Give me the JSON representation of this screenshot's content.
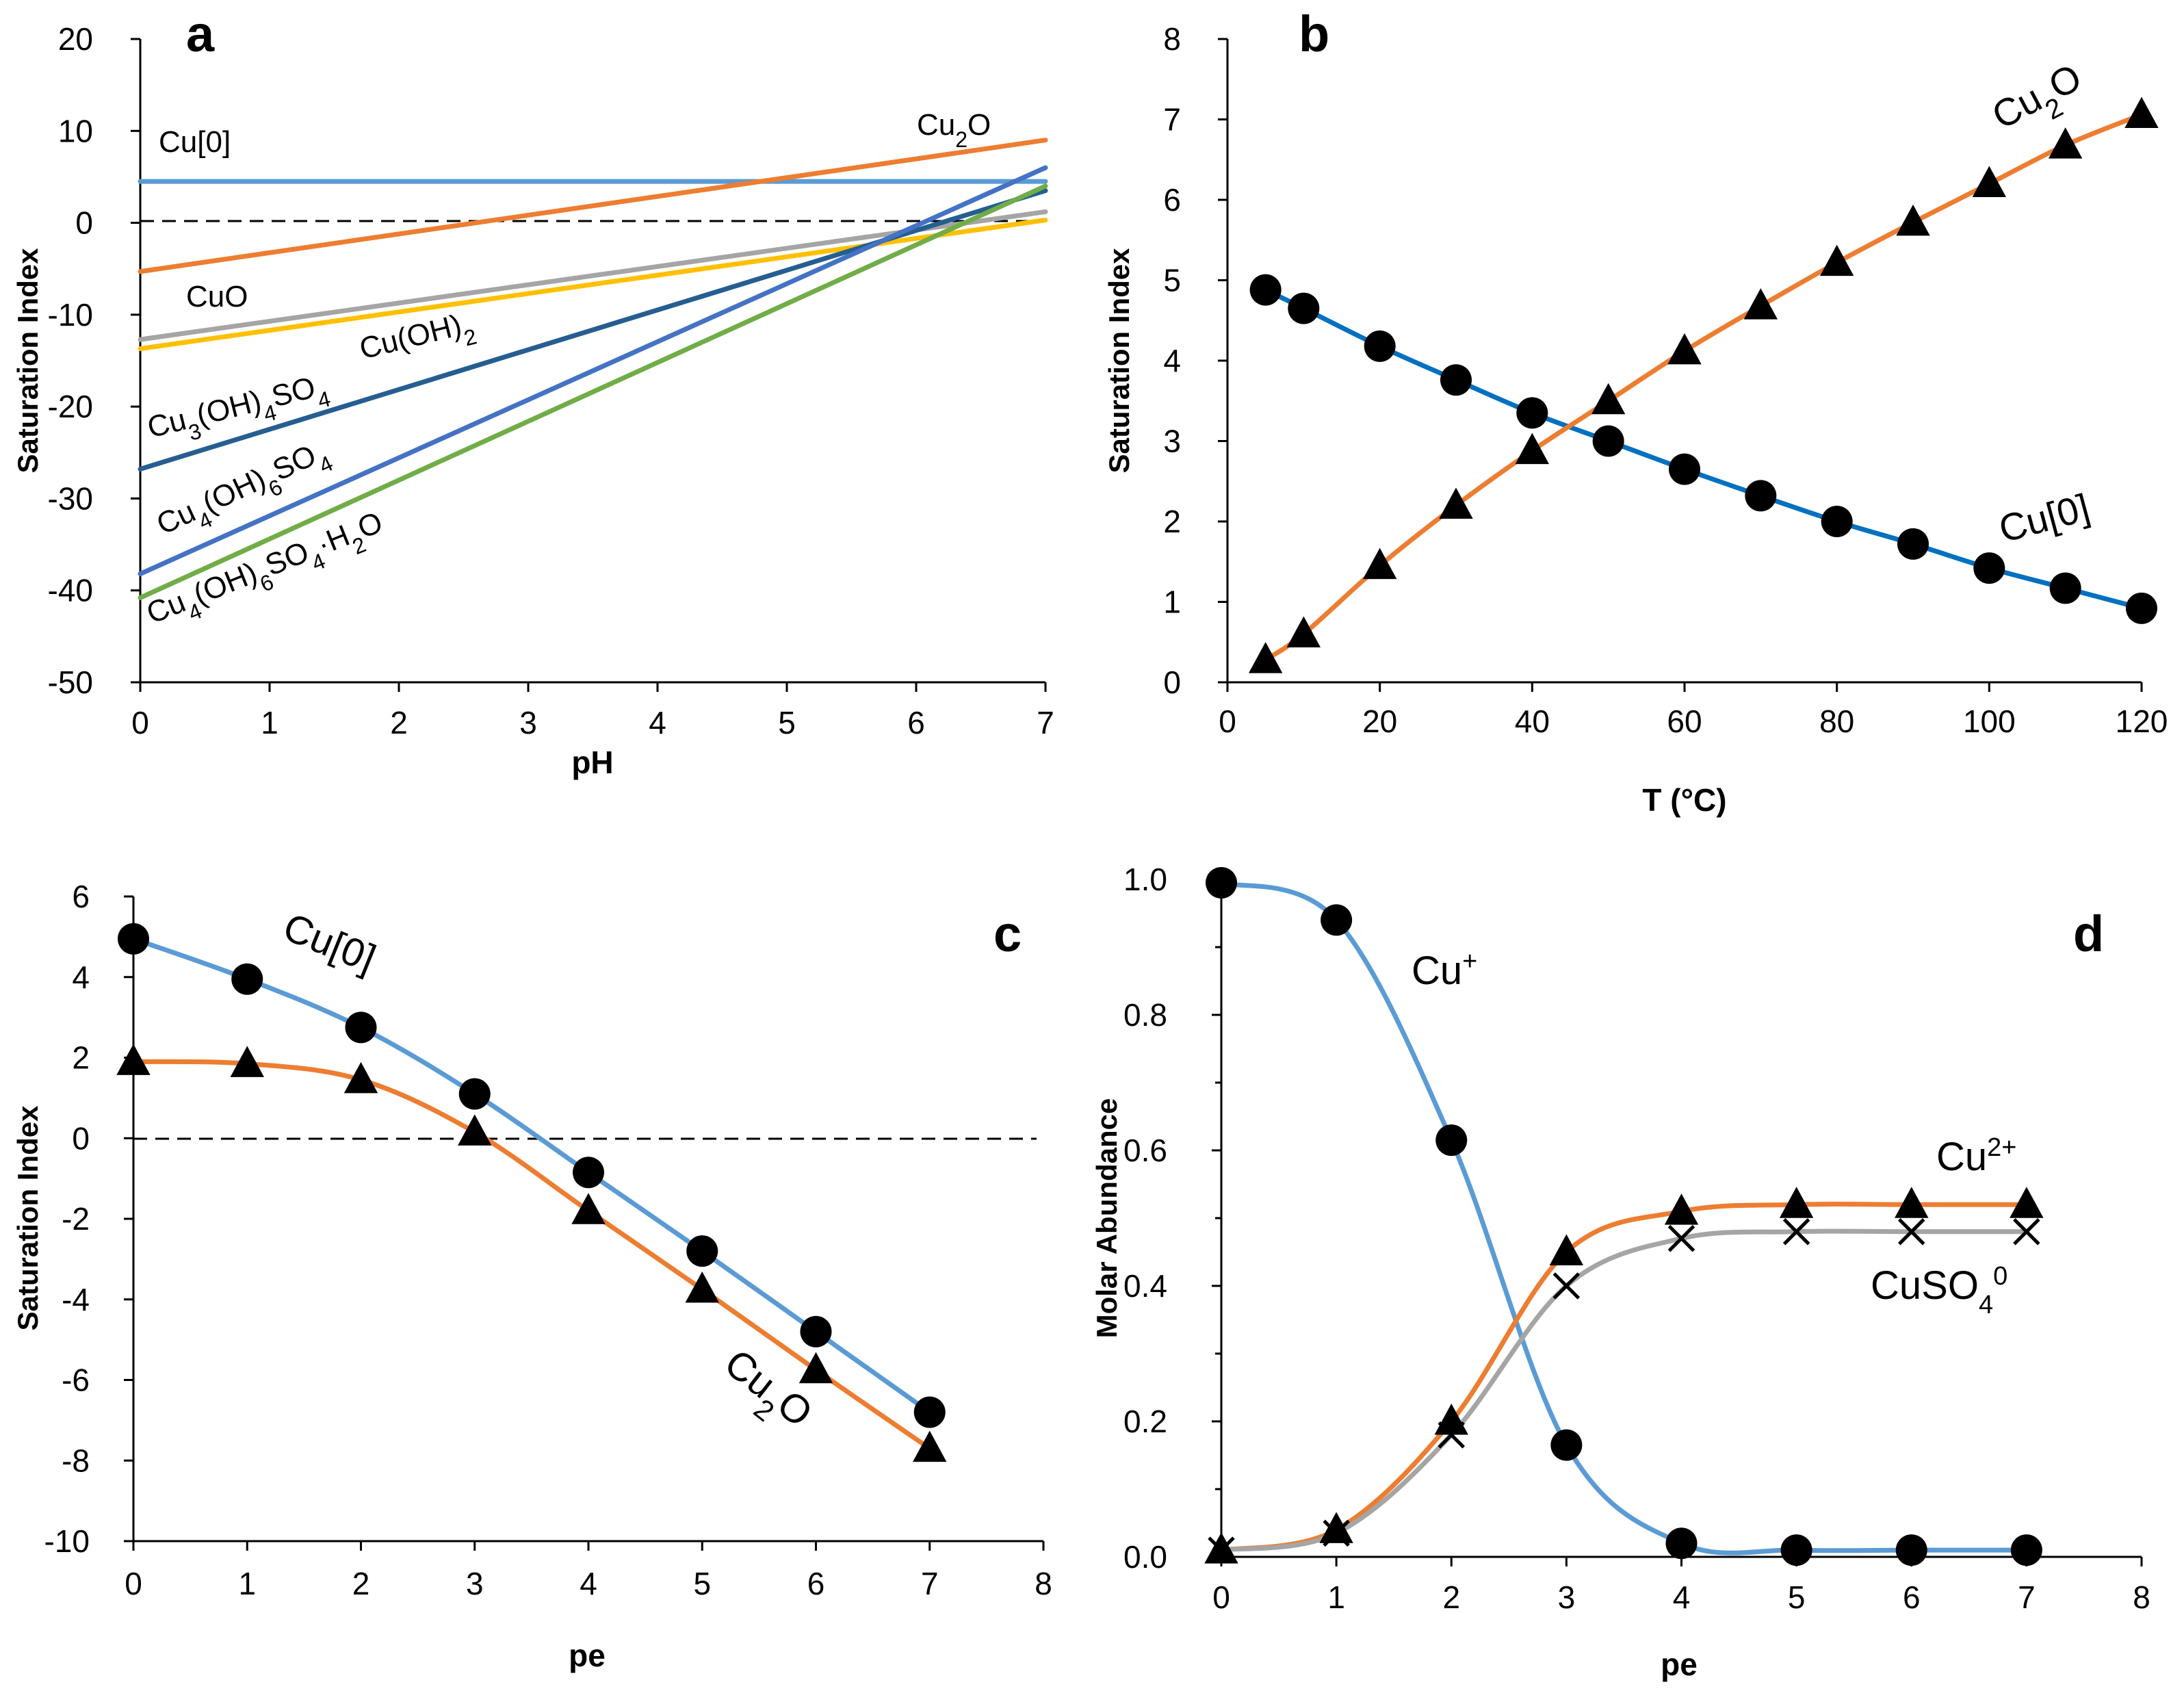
{
  "chart_data": [
    {
      "panel": "a",
      "type": "line",
      "xlabel": "pH",
      "ylabel": "Saturation Index",
      "xlim": [
        0,
        7
      ],
      "ylim": [
        -50,
        20
      ],
      "xticks": [
        "0",
        "1",
        "2",
        "3",
        "4",
        "5",
        "6",
        "7"
      ],
      "yticks": [
        "20",
        "10",
        "0",
        "-10",
        "-20",
        "-30",
        "-40",
        "-50"
      ],
      "reference_line": {
        "y": 0,
        "style": "dashed"
      },
      "series": [
        {
          "name": "Cu[0]",
          "label_text": "Cu[0]",
          "color": "#5B9BD5",
          "points": [
            [
              0,
              4.5
            ],
            [
              7,
              4.5
            ]
          ]
        },
        {
          "name": "Cu2O",
          "label_text": "Cu",
          "label_sub": "2",
          "label_tail": "O",
          "color": "#ED7D31",
          "points": [
            [
              0,
              -5.3
            ],
            [
              7,
              9.0
            ]
          ]
        },
        {
          "name": "CuO",
          "label_text": "CuO",
          "color": "#A5A5A5",
          "points": [
            [
              0,
              -12.7
            ],
            [
              7,
              1.2
            ]
          ]
        },
        {
          "name": "Cu(OH)2",
          "label_text": "Cu(OH)",
          "label_sub": "2",
          "color": "#FFC000",
          "points": [
            [
              0,
              -13.7
            ],
            [
              7,
              0.3
            ]
          ]
        },
        {
          "name": "Cu3(OH)4SO4",
          "label_text": "Cu",
          "label_sub": "3",
          "label_mid": "(OH)",
          "label_sub2": "4",
          "label_tail": "SO",
          "label_sub3": "4",
          "color": "#255E91",
          "points": [
            [
              0,
              -26.8
            ],
            [
              7,
              3.5
            ]
          ]
        },
        {
          "name": "Cu4(OH)6SO4",
          "label_text": "Cu",
          "label_sub": "4",
          "label_mid": "(OH)",
          "label_sub2": "6",
          "label_tail": "SO",
          "label_sub3": "4",
          "color": "#4472C4",
          "points": [
            [
              0,
              -38.2
            ],
            [
              7,
              6.0
            ]
          ]
        },
        {
          "name": "Cu4(OH)6SO4·H2O",
          "label_text": "Cu",
          "label_sub": "4",
          "label_mid": "(OH)",
          "label_sub2": "6",
          "label_tail": "SO",
          "label_sub3": "4",
          "label_tail2": "·H",
          "label_sub4": "2",
          "label_tail3": "O",
          "color": "#70AD47",
          "points": [
            [
              0,
              -40.8
            ],
            [
              7,
              4.0
            ]
          ]
        }
      ]
    },
    {
      "panel": "b",
      "type": "line",
      "xlabel": "T (°C)",
      "ylabel": "Saturation Index",
      "xlim": [
        0,
        120
      ],
      "ylim": [
        0,
        8
      ],
      "xticks": [
        "0",
        "20",
        "40",
        "60",
        "80",
        "100",
        "120"
      ],
      "yticks": [
        "8",
        "7",
        "6",
        "5",
        "4",
        "3",
        "2",
        "1",
        "0"
      ],
      "series": [
        {
          "name": "Cu[0]",
          "label_text": "Cu[0]",
          "marker": "circle",
          "color": "#0070C0",
          "x": [
            5,
            10,
            20,
            30,
            40,
            50,
            60,
            70,
            80,
            90,
            100,
            110,
            120
          ],
          "y": [
            4.88,
            4.65,
            4.18,
            3.76,
            3.35,
            3.0,
            2.65,
            2.32,
            2.0,
            1.72,
            1.42,
            1.17,
            0.92
          ]
        },
        {
          "name": "Cu2O",
          "label_text": "Cu",
          "label_sub": "2",
          "label_tail": "O",
          "marker": "triangle",
          "color": "#ED7D31",
          "x": [
            5,
            10,
            20,
            30,
            40,
            50,
            60,
            70,
            80,
            90,
            100,
            110,
            120
          ],
          "y": [
            0.28,
            0.6,
            1.45,
            2.2,
            2.88,
            3.5,
            4.12,
            4.68,
            5.22,
            5.72,
            6.2,
            6.68,
            7.06
          ]
        }
      ]
    },
    {
      "panel": "c",
      "type": "line",
      "xlabel": "pe",
      "ylabel": "Saturation Index",
      "xlim": [
        0,
        8
      ],
      "ylim": [
        -10,
        6
      ],
      "xticks": [
        "0",
        "1",
        "2",
        "3",
        "4",
        "5",
        "6",
        "7",
        "8"
      ],
      "yticks": [
        "6",
        "4",
        "2",
        "0",
        "-2",
        "-4",
        "-6",
        "-8",
        "-10"
      ],
      "reference_line": {
        "y": 0,
        "style": "dashed"
      },
      "series": [
        {
          "name": "Cu[0]",
          "label_text": "Cu[0]",
          "marker": "circle",
          "color": "#5B9BD5",
          "x": [
            0,
            1,
            2,
            3,
            4,
            5,
            6,
            7
          ],
          "y": [
            4.95,
            3.95,
            2.75,
            1.1,
            -0.85,
            -2.8,
            -4.8,
            -6.8
          ]
        },
        {
          "name": "Cu2O",
          "label_text": "Cu",
          "label_sub": "2",
          "label_tail": "O",
          "marker": "triangle",
          "color": "#ED7D31",
          "x": [
            0,
            1,
            2,
            3,
            4,
            5,
            6,
            7
          ],
          "y": [
            1.9,
            1.85,
            1.45,
            0.15,
            -1.8,
            -3.75,
            -5.75,
            -7.7
          ]
        }
      ]
    },
    {
      "panel": "d",
      "type": "line",
      "xlabel": "pe",
      "ylabel": "Molar Abundance",
      "xlim": [
        0,
        8
      ],
      "ylim": [
        0,
        1.0
      ],
      "xticks": [
        "0",
        "1",
        "2",
        "3",
        "4",
        "5",
        "6",
        "7",
        "8"
      ],
      "yticks": [
        "1.0",
        "0.8",
        "0.6",
        "0.4",
        "0.2",
        "0.0"
      ],
      "series": [
        {
          "name": "Cu+",
          "label_text": "Cu",
          "label_sup": "+",
          "marker": "circle",
          "color": "#5B9BD5",
          "x": [
            0,
            1,
            2,
            3,
            4,
            5,
            6,
            7
          ],
          "y": [
            0.995,
            0.94,
            0.615,
            0.165,
            0.02,
            0.01,
            0.01,
            0.01
          ]
        },
        {
          "name": "Cu2+",
          "label_text": "Cu",
          "label_sup": "2+",
          "marker": "triangle",
          "color": "#ED7D31",
          "x": [
            0,
            1,
            2,
            3,
            4,
            5,
            6,
            7
          ],
          "y": [
            0.01,
            0.04,
            0.2,
            0.45,
            0.51,
            0.52,
            0.52,
            0.52
          ]
        },
        {
          "name": "CuSO4 0",
          "label_text": "CuSO",
          "label_sub": "4",
          "label_sup": "0",
          "marker": "x",
          "color": "#A5A5A5",
          "x": [
            0,
            1,
            2,
            3,
            4,
            5,
            6,
            7
          ],
          "y": [
            0.01,
            0.035,
            0.18,
            0.4,
            0.47,
            0.48,
            0.48,
            0.48
          ]
        }
      ]
    }
  ]
}
